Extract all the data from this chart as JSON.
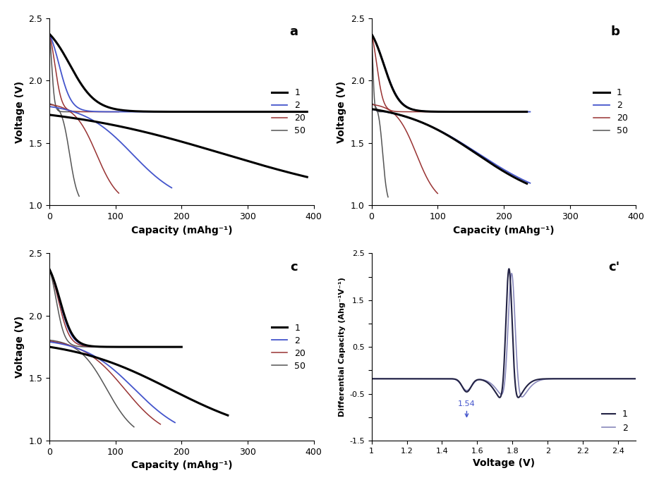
{
  "panel_a": {
    "label": "a",
    "cycles_order": [
      "50",
      "20",
      "2",
      "1"
    ],
    "cycles": {
      "1": {
        "color": "#000000",
        "lw": 2.2,
        "chg_cap": 390,
        "dch_cap": 390
      },
      "2": {
        "color": "#4455cc",
        "lw": 1.3,
        "chg_cap": 185,
        "dch_cap": 185
      },
      "20": {
        "color": "#993333",
        "lw": 1.1,
        "chg_cap": 105,
        "dch_cap": 105
      },
      "50": {
        "color": "#555555",
        "lw": 1.1,
        "chg_cap": 45,
        "dch_cap": 45
      }
    }
  },
  "panel_b": {
    "label": "b",
    "cycles_order": [
      "50",
      "20",
      "2",
      "1"
    ],
    "cycles": {
      "1": {
        "color": "#000000",
        "lw": 2.2,
        "chg_cap": 235,
        "dch_cap": 235
      },
      "2": {
        "color": "#4455cc",
        "lw": 1.3,
        "chg_cap": 240,
        "dch_cap": 240
      },
      "20": {
        "color": "#993333",
        "lw": 1.1,
        "chg_cap": 100,
        "dch_cap": 100
      },
      "50": {
        "color": "#555555",
        "lw": 1.1,
        "chg_cap": 25,
        "dch_cap": 25
      }
    }
  },
  "panel_c": {
    "label": "c",
    "cycles_order": [
      "50",
      "20",
      "2",
      "1"
    ],
    "cycles": {
      "1": {
        "color": "#000000",
        "lw": 2.2,
        "chg_cap": 200,
        "dch_cap": 270
      },
      "2": {
        "color": "#4455cc",
        "lw": 1.3,
        "chg_cap": 190,
        "dch_cap": 190
      },
      "20": {
        "color": "#993333",
        "lw": 1.1,
        "chg_cap": 170,
        "dch_cap": 168
      },
      "50": {
        "color": "#555555",
        "lw": 1.1,
        "chg_cap": 130,
        "dch_cap": 128
      }
    }
  },
  "xlim": [
    0,
    400
  ],
  "ylim": [
    1.0,
    2.5
  ],
  "yticks": [
    1.0,
    1.5,
    2.0,
    2.5
  ],
  "xticks": [
    0,
    100,
    200,
    300,
    400
  ],
  "xlabel": "Capacity (mAhg⁻¹)",
  "ylabel": "Voltage (V)",
  "legend_labels": [
    "1",
    "2",
    "20",
    "50"
  ],
  "legend_colors": [
    "#000000",
    "#4455cc",
    "#993333",
    "#555555"
  ],
  "legend_lw": [
    2.2,
    1.3,
    1.1,
    1.1
  ]
}
